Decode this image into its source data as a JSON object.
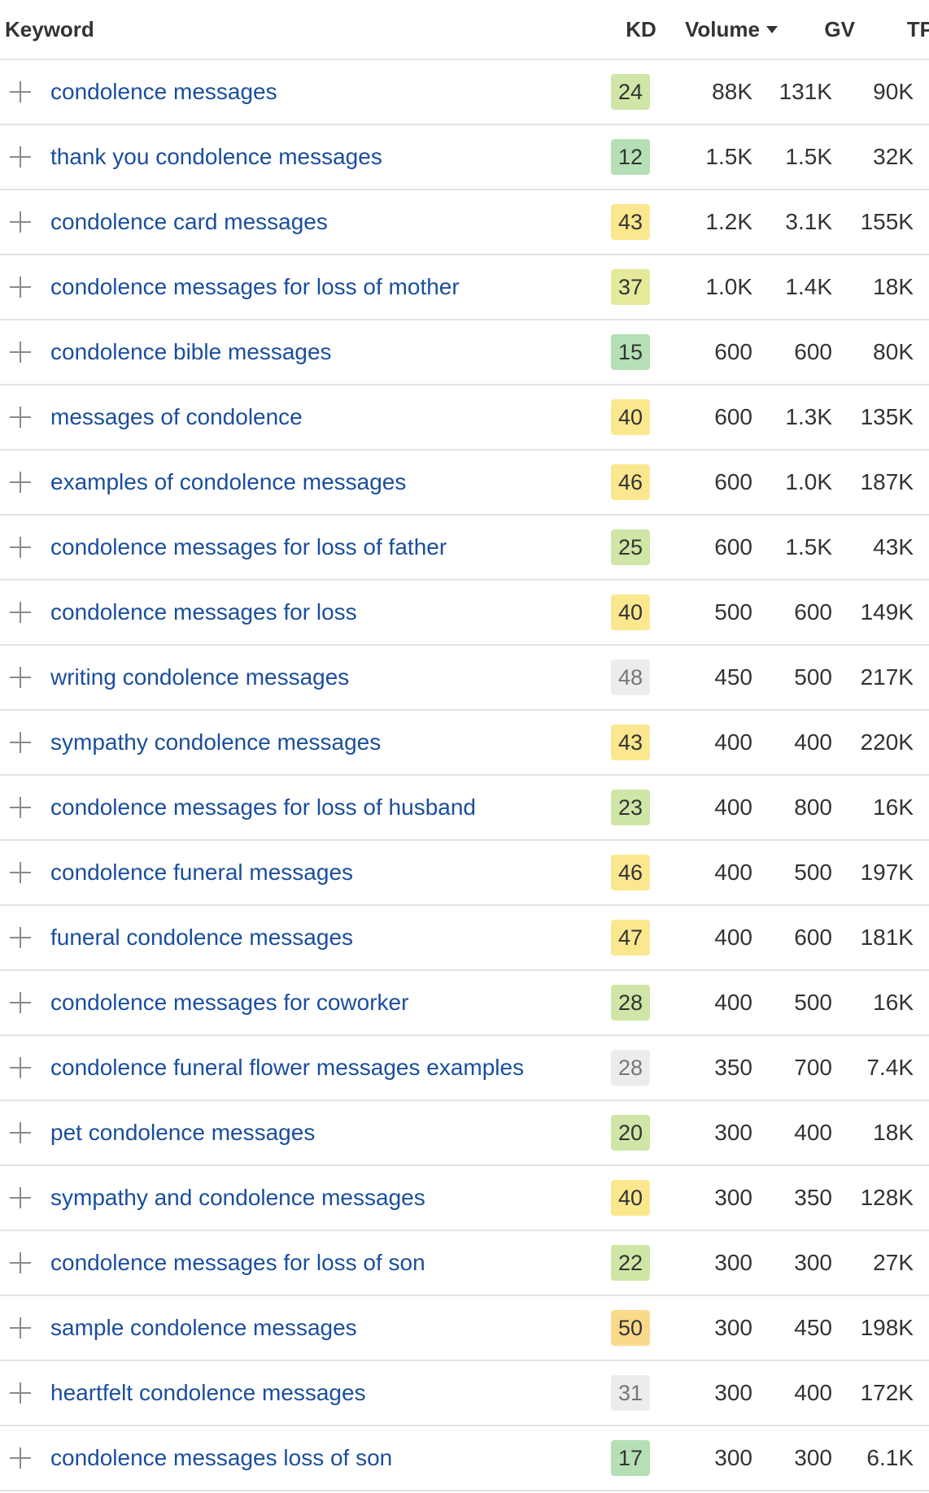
{
  "header": {
    "keyword": "Keyword",
    "kd": "KD",
    "volume": "Volume",
    "gv": "GV",
    "tp": "TP"
  },
  "colors": {
    "link": "#1a4e9c",
    "kd_green_dark": "#b5dfb4",
    "kd_green_light": "#cfe6a6",
    "kd_yellow_green": "#e5ea9a",
    "kd_yellow": "#fbe78e",
    "kd_orange": "#fbd98a",
    "kd_gray": "#ececec"
  },
  "rows": [
    {
      "keyword": "condolence messages",
      "kd": "24",
      "kd_color": "#cfe6a6",
      "volume": "88K",
      "gv": "131K",
      "tp": "90K"
    },
    {
      "keyword": "thank you condolence messages",
      "kd": "12",
      "kd_color": "#b5dfb4",
      "volume": "1.5K",
      "gv": "1.5K",
      "tp": "32K"
    },
    {
      "keyword": "condolence card messages",
      "kd": "43",
      "kd_color": "#fbe78e",
      "volume": "1.2K",
      "gv": "3.1K",
      "tp": "155K"
    },
    {
      "keyword": "condolence messages for loss of mother",
      "kd": "37",
      "kd_color": "#e5ea9a",
      "volume": "1.0K",
      "gv": "1.4K",
      "tp": "18K"
    },
    {
      "keyword": "condolence bible messages",
      "kd": "15",
      "kd_color": "#b5dfb4",
      "volume": "600",
      "gv": "600",
      "tp": "80K"
    },
    {
      "keyword": "messages of condolence",
      "kd": "40",
      "kd_color": "#fbe78e",
      "volume": "600",
      "gv": "1.3K",
      "tp": "135K"
    },
    {
      "keyword": "examples of condolence messages",
      "kd": "46",
      "kd_color": "#fbe78e",
      "volume": "600",
      "gv": "1.0K",
      "tp": "187K"
    },
    {
      "keyword": "condolence messages for loss of father",
      "kd": "25",
      "kd_color": "#cfe6a6",
      "volume": "600",
      "gv": "1.5K",
      "tp": "43K"
    },
    {
      "keyword": "condolence messages for loss",
      "kd": "40",
      "kd_color": "#fbe78e",
      "volume": "500",
      "gv": "600",
      "tp": "149K"
    },
    {
      "keyword": "writing condolence messages",
      "kd": "48",
      "kd_color": "#ececec",
      "volume": "450",
      "gv": "500",
      "tp": "217K"
    },
    {
      "keyword": "sympathy condolence messages",
      "kd": "43",
      "kd_color": "#fbe78e",
      "volume": "400",
      "gv": "400",
      "tp": "220K"
    },
    {
      "keyword": "condolence messages for loss of husband",
      "kd": "23",
      "kd_color": "#cfe6a6",
      "volume": "400",
      "gv": "800",
      "tp": "16K"
    },
    {
      "keyword": "condolence funeral messages",
      "kd": "46",
      "kd_color": "#fbe78e",
      "volume": "400",
      "gv": "500",
      "tp": "197K"
    },
    {
      "keyword": "funeral condolence messages",
      "kd": "47",
      "kd_color": "#fbe78e",
      "volume": "400",
      "gv": "600",
      "tp": "181K"
    },
    {
      "keyword": "condolence messages for coworker",
      "kd": "28",
      "kd_color": "#cfe6a6",
      "volume": "400",
      "gv": "500",
      "tp": "16K"
    },
    {
      "keyword": "condolence funeral flower messages examples",
      "kd": "28",
      "kd_color": "#ececec",
      "volume": "350",
      "gv": "700",
      "tp": "7.4K"
    },
    {
      "keyword": "pet condolence messages",
      "kd": "20",
      "kd_color": "#cfe6a6",
      "volume": "300",
      "gv": "400",
      "tp": "18K"
    },
    {
      "keyword": "sympathy and condolence messages",
      "kd": "40",
      "kd_color": "#fbe78e",
      "volume": "300",
      "gv": "350",
      "tp": "128K"
    },
    {
      "keyword": "condolence messages for loss of son",
      "kd": "22",
      "kd_color": "#cfe6a6",
      "volume": "300",
      "gv": "300",
      "tp": "27K"
    },
    {
      "keyword": "sample condolence messages",
      "kd": "50",
      "kd_color": "#fbd98a",
      "volume": "300",
      "gv": "450",
      "tp": "198K"
    },
    {
      "keyword": "heartfelt condolence messages",
      "kd": "31",
      "kd_color": "#ececec",
      "volume": "300",
      "gv": "400",
      "tp": "172K"
    },
    {
      "keyword": "condolence messages loss of son",
      "kd": "17",
      "kd_color": "#b5dfb4",
      "volume": "300",
      "gv": "300",
      "tp": "6.1K"
    }
  ]
}
